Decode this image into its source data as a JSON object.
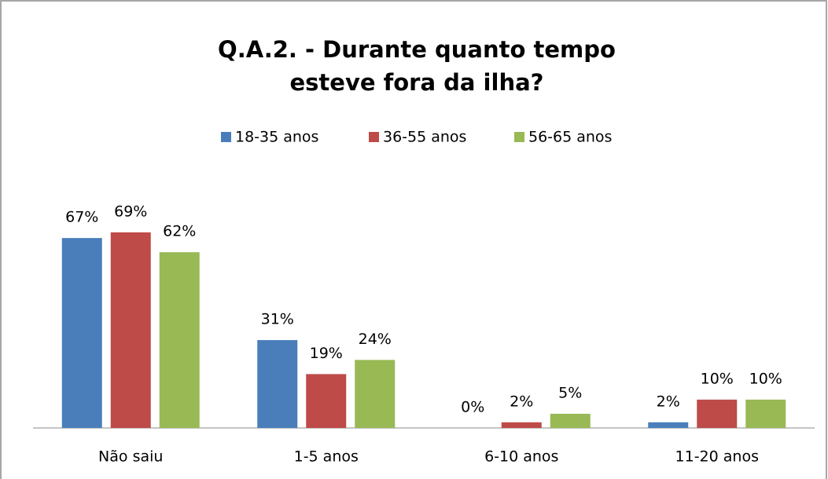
{
  "chart_data": {
    "type": "bar",
    "title": "Q.A.2. - Durante quanto tempo esteve fora da ilha?",
    "categories": [
      "Não saiu",
      "1-5 anos",
      "6-10 anos",
      "11-20 anos"
    ],
    "series": [
      {
        "name": "18-35 anos",
        "color": "#4a7ebb",
        "values": [
          67,
          31,
          0,
          2
        ],
        "value_labels": [
          "67%",
          "31%",
          "0%",
          "2%"
        ]
      },
      {
        "name": "36-55 anos",
        "color": "#be4b48",
        "values": [
          69,
          19,
          2,
          10
        ],
        "value_labels": [
          "69%",
          "19%",
          "2%",
          "10%"
        ]
      },
      {
        "name": "56-65 anos",
        "color": "#98b954",
        "values": [
          62,
          24,
          5,
          10
        ],
        "value_labels": [
          "62%",
          "24%",
          "5%",
          "10%"
        ]
      }
    ],
    "legend": "top"
  }
}
